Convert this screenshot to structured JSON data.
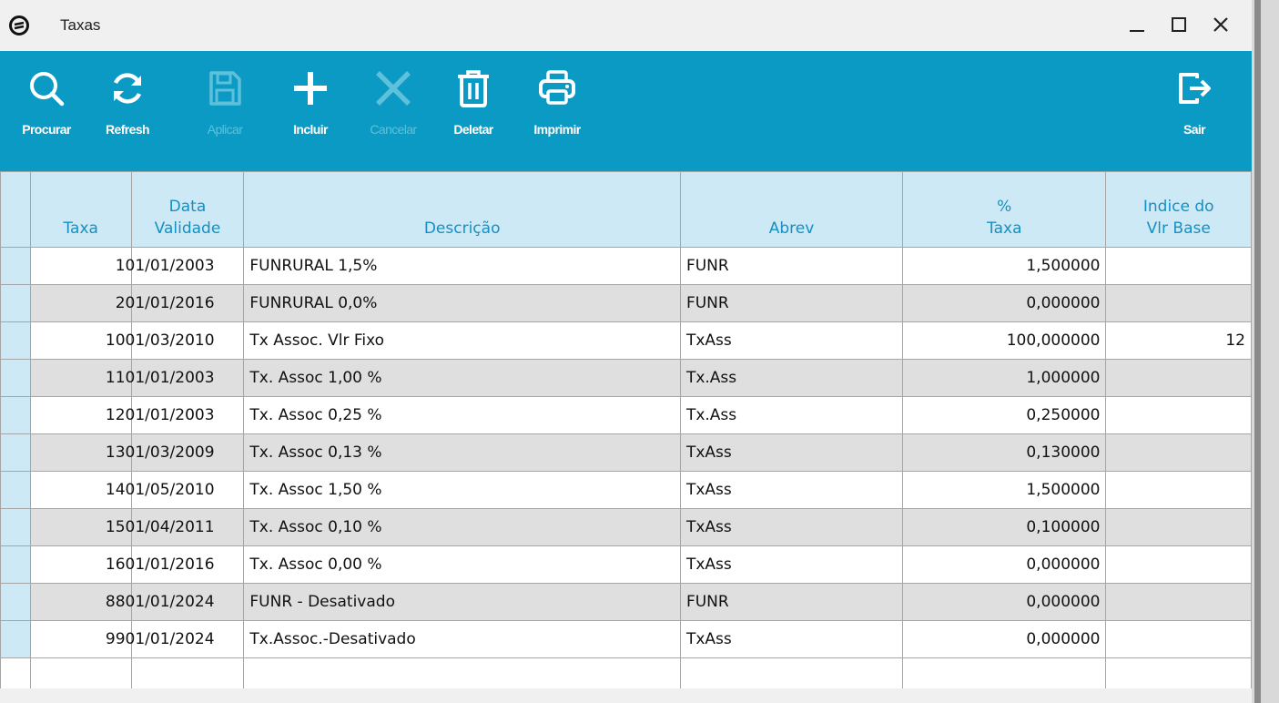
{
  "window": {
    "title": "Taxas"
  },
  "toolbar": {
    "buttons": [
      {
        "label": "Procurar",
        "icon": "search-icon",
        "enabled": true
      },
      {
        "label": "Refresh",
        "icon": "refresh-icon",
        "enabled": true
      },
      {
        "label": "Aplicar",
        "icon": "save-icon",
        "enabled": false
      },
      {
        "label": "Incluir",
        "icon": "plus-icon",
        "enabled": true
      },
      {
        "label": "Cancelar",
        "icon": "close-icon",
        "enabled": false
      },
      {
        "label": "Deletar",
        "icon": "trash-icon",
        "enabled": true
      },
      {
        "label": "Imprimir",
        "icon": "printer-icon",
        "enabled": true
      }
    ],
    "exit": {
      "label": "Sair",
      "icon": "exit-icon"
    }
  },
  "grid": {
    "columns": [
      {
        "line1": "",
        "line2": "Taxa"
      },
      {
        "line1": "Data",
        "line2": "Validade"
      },
      {
        "line1": "",
        "line2": "Descrição"
      },
      {
        "line1": "",
        "line2": "Abrev"
      },
      {
        "line1": "%",
        "line2": "Taxa"
      },
      {
        "line1": "Indice do",
        "line2": "Vlr Base"
      }
    ],
    "rows": [
      {
        "taxa": "1",
        "data": "01/01/2003",
        "descricao": "FUNRURAL  1,5%",
        "abrev": "FUNR",
        "pct": "1,500000",
        "indice": ""
      },
      {
        "taxa": "2",
        "data": "01/01/2016",
        "descricao": "FUNRURAL  0,0%",
        "abrev": "FUNR",
        "pct": "0,000000",
        "indice": ""
      },
      {
        "taxa": "10",
        "data": "01/03/2010",
        "descricao": "Tx Assoc. Vlr Fixo",
        "abrev": "TxAss",
        "pct": "100,000000",
        "indice": "12"
      },
      {
        "taxa": "11",
        "data": "01/01/2003",
        "descricao": "Tx. Assoc  1,00 %",
        "abrev": "Tx.Ass",
        "pct": "1,000000",
        "indice": ""
      },
      {
        "taxa": "12",
        "data": "01/01/2003",
        "descricao": "Tx. Assoc  0,25 %",
        "abrev": "Tx.Ass",
        "pct": "0,250000",
        "indice": ""
      },
      {
        "taxa": "13",
        "data": "01/03/2009",
        "descricao": "Tx. Assoc  0,13 %",
        "abrev": "TxAss",
        "pct": "0,130000",
        "indice": ""
      },
      {
        "taxa": "14",
        "data": "01/05/2010",
        "descricao": "Tx. Assoc  1,50 %",
        "abrev": "TxAss",
        "pct": "1,500000",
        "indice": ""
      },
      {
        "taxa": "15",
        "data": "01/04/2011",
        "descricao": "Tx. Assoc  0,10 %",
        "abrev": "TxAss",
        "pct": "0,100000",
        "indice": ""
      },
      {
        "taxa": "16",
        "data": "01/01/2016",
        "descricao": "Tx. Assoc  0,00 %",
        "abrev": "TxAss",
        "pct": "0,000000",
        "indice": ""
      },
      {
        "taxa": "88",
        "data": "01/01/2024",
        "descricao": "FUNR    - Desativado",
        "abrev": "FUNR",
        "pct": "0,000000",
        "indice": ""
      },
      {
        "taxa": "99",
        "data": "01/01/2024",
        "descricao": "Tx.Assoc.-Desativado",
        "abrev": "TxAss",
        "pct": "0,000000",
        "indice": ""
      }
    ]
  },
  "colors": {
    "toolbar": "#0a9ac3",
    "header_bg": "#cce9f5",
    "header_text": "#1690c2",
    "alt_row": "#dfdfdf"
  }
}
